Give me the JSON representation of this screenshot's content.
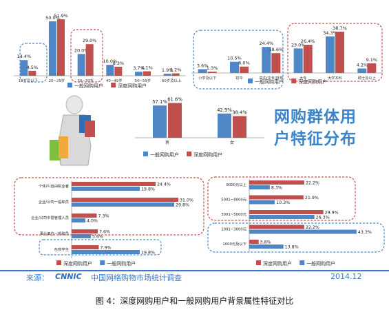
{
  "colors": {
    "general": "#4f86c6",
    "deep": "#c0504d",
    "dash_blue": "#4f86c6",
    "dash_red": "#c0504d",
    "accent_text": "#3a79c7"
  },
  "legend": {
    "general": "一般网购用户",
    "deep": "深度网购用户"
  },
  "title_lines": [
    "网购群体用",
    "户特征分布"
  ],
  "footer": {
    "source_label": "来源：",
    "logo": "CNNIC",
    "org": "中国网络购物市场统计调查",
    "date": "2014.12"
  },
  "caption": "图 4：深度网购用户和一般网购用户背景属性特征对比",
  "chart_data": [
    {
      "type": "bar",
      "categories": [
        "19岁及以下",
        "20~29岁",
        "30~39岁",
        "40~49岁",
        "50~59岁",
        "60岁及以上"
      ],
      "series": [
        {
          "name": "一般网购用户",
          "values": [
            14.4,
            50.0,
            20.0,
            10.0,
            3.7,
            1.9
          ],
          "labels": [
            "14.4%",
            "50.0%",
            "20.0%",
            "10.0%",
            "3.7%",
            "1.9%"
          ]
        },
        {
          "name": "深度网购用户",
          "values": [
            4.5,
            51.9,
            29.0,
            8.3,
            4.1,
            2.2
          ],
          "labels": [
            "4.5%",
            "51.9%",
            "29.0%",
            "8.3%",
            "4.1%",
            "2.2%"
          ]
        }
      ]
    },
    {
      "type": "bar",
      "categories": [
        "小学及以下",
        "初中",
        "高中/中专/技校",
        "大专",
        "大学本科",
        "硕士及以上"
      ],
      "series": [
        {
          "name": "一般网购用户",
          "values": [
            3.6,
            10.5,
            24.4,
            23.0,
            34.3,
            4.2
          ],
          "labels": [
            "3.6%",
            "10.5%",
            "24.4%",
            "23.0%",
            "34.3%",
            "4.2%"
          ]
        },
        {
          "name": "深度网购用户",
          "values": [
            1.3,
            6.0,
            18.6,
            26.4,
            38.7,
            9.1
          ],
          "labels": [
            "1.3%",
            "6.0%",
            "18.6%",
            "26.4%",
            "38.7%",
            "9.1%"
          ]
        }
      ]
    },
    {
      "type": "bar",
      "categories": [
        "男",
        "女"
      ],
      "series": [
        {
          "name": "一般网购用户",
          "values": [
            57.1,
            42.9
          ],
          "labels": [
            "57.1%",
            "42.9%"
          ]
        },
        {
          "name": "深度网购用户",
          "values": [
            61.6,
            38.4
          ],
          "labels": [
            "61.6%",
            "38.4%"
          ]
        }
      ]
    },
    {
      "type": "bar",
      "orientation": "horizontal",
      "categories": [
        "个体户/自由职业者",
        "企业/公司一般职员",
        "企业/公司中层管理人员",
        "事业单位一般职员",
        "在校学生"
      ],
      "series": [
        {
          "name": "深度网购用户",
          "values": [
            24.4,
            31.0,
            7.3,
            7.6,
            7.9
          ],
          "labels": [
            "24.4%",
            "31.0%",
            "7.3%",
            "7.6%",
            "7.9%"
          ]
        },
        {
          "name": "一般网购用户",
          "values": [
            19.8,
            29.8,
            4.0,
            5.6,
            19.8
          ],
          "labels": [
            "19.8%",
            "29.8%",
            "4.0%",
            "5.6%",
            "19.8%"
          ]
        }
      ]
    },
    {
      "type": "bar",
      "orientation": "horizontal",
      "categories": [
        "8000元以上",
        "5001~8000元",
        "3001~5000元",
        "1001~3000元",
        "1000元及以下"
      ],
      "series": [
        {
          "name": "深度网购用户",
          "values": [
            22.2,
            21.9,
            29.9,
            22.2,
            3.8
          ],
          "labels": [
            "22.2%",
            "21.9%",
            "29.9%",
            "22.2%",
            "3.8%"
          ]
        },
        {
          "name": "一般网购用户",
          "values": [
            8.3,
            10.3,
            26.3,
            43.3,
            13.8
          ],
          "labels": [
            "8.3%",
            "10.3%",
            "26.3%",
            "43.3%",
            "13.8%"
          ]
        }
      ]
    }
  ]
}
